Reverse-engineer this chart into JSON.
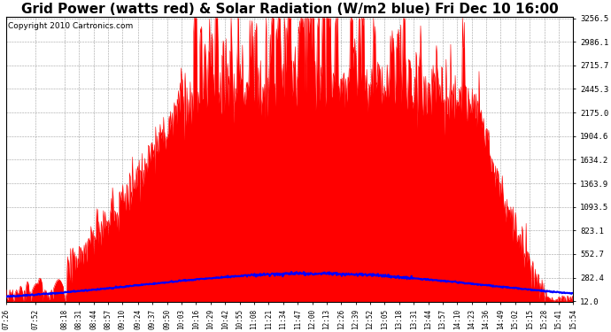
{
  "title": "Grid Power (watts red) & Solar Radiation (W/m2 blue) Fri Dec 10 16:00",
  "copyright": "Copyright 2010 Cartronics.com",
  "yticks": [
    12.0,
    282.4,
    552.7,
    823.1,
    1093.5,
    1363.9,
    1634.2,
    1904.6,
    2175.0,
    2445.3,
    2715.7,
    2986.1,
    3256.5
  ],
  "ymin": 0,
  "ymax": 3256.5,
  "grid_color": "#888888",
  "bg_color": "#ffffff",
  "plot_bg": "#ffffff",
  "red_color": "#ff0000",
  "blue_color": "#0000ff",
  "title_fontsize": 11,
  "copyright_fontsize": 6.5,
  "xtick_labels": [
    "07:26",
    "07:52",
    "08:18",
    "08:31",
    "08:44",
    "08:57",
    "09:10",
    "09:24",
    "09:37",
    "09:50",
    "10:03",
    "10:16",
    "10:29",
    "10:42",
    "10:55",
    "11:08",
    "11:21",
    "11:34",
    "11:47",
    "12:00",
    "12:13",
    "12:26",
    "12:39",
    "12:52",
    "13:05",
    "13:18",
    "13:31",
    "13:44",
    "13:57",
    "14:10",
    "14:23",
    "14:36",
    "14:49",
    "15:02",
    "15:15",
    "15:28",
    "15:41",
    "15:54"
  ]
}
